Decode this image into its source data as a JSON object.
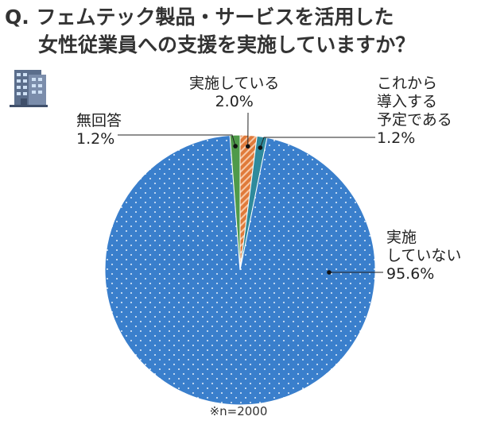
{
  "question": {
    "line1": "Q. フェムテック製品・サービスを活用した",
    "line2": "女性従業員への支援を実施していますか？"
  },
  "icon": "office-building-icon",
  "chart_data": {
    "type": "pie",
    "start": "top",
    "direction": "clockwise",
    "slices": [
      {
        "key": "implementing",
        "label": "実施している",
        "value": 2.0,
        "display": "2.0%",
        "color": "#e07a3a",
        "pattern": "hatch"
      },
      {
        "key": "planned",
        "label": "これから導入する予定である",
        "value": 1.2,
        "display": "1.2%",
        "color": "#2f8a9c",
        "pattern": "solid"
      },
      {
        "key": "not_implementing",
        "label": "実施していない",
        "value": 95.6,
        "display": "95.6%",
        "color": "#3a7fcc",
        "pattern": "dots"
      },
      {
        "key": "no_answer",
        "label": "無回答",
        "value": 1.2,
        "display": "1.2%",
        "color": "#4f9a4a",
        "pattern": "solid"
      }
    ]
  },
  "labels": {
    "implementing": {
      "line1": "実施している",
      "value": "2.0%"
    },
    "planned": {
      "line1": "これから",
      "line2": "導入する",
      "line3": "予定である",
      "value": "1.2%"
    },
    "not_implementing": {
      "line1": "実施",
      "line2": "していない",
      "value": "95.6%"
    },
    "no_answer": {
      "line1": "無回答",
      "value": "1.2%"
    }
  },
  "footnote": "※n=2000"
}
